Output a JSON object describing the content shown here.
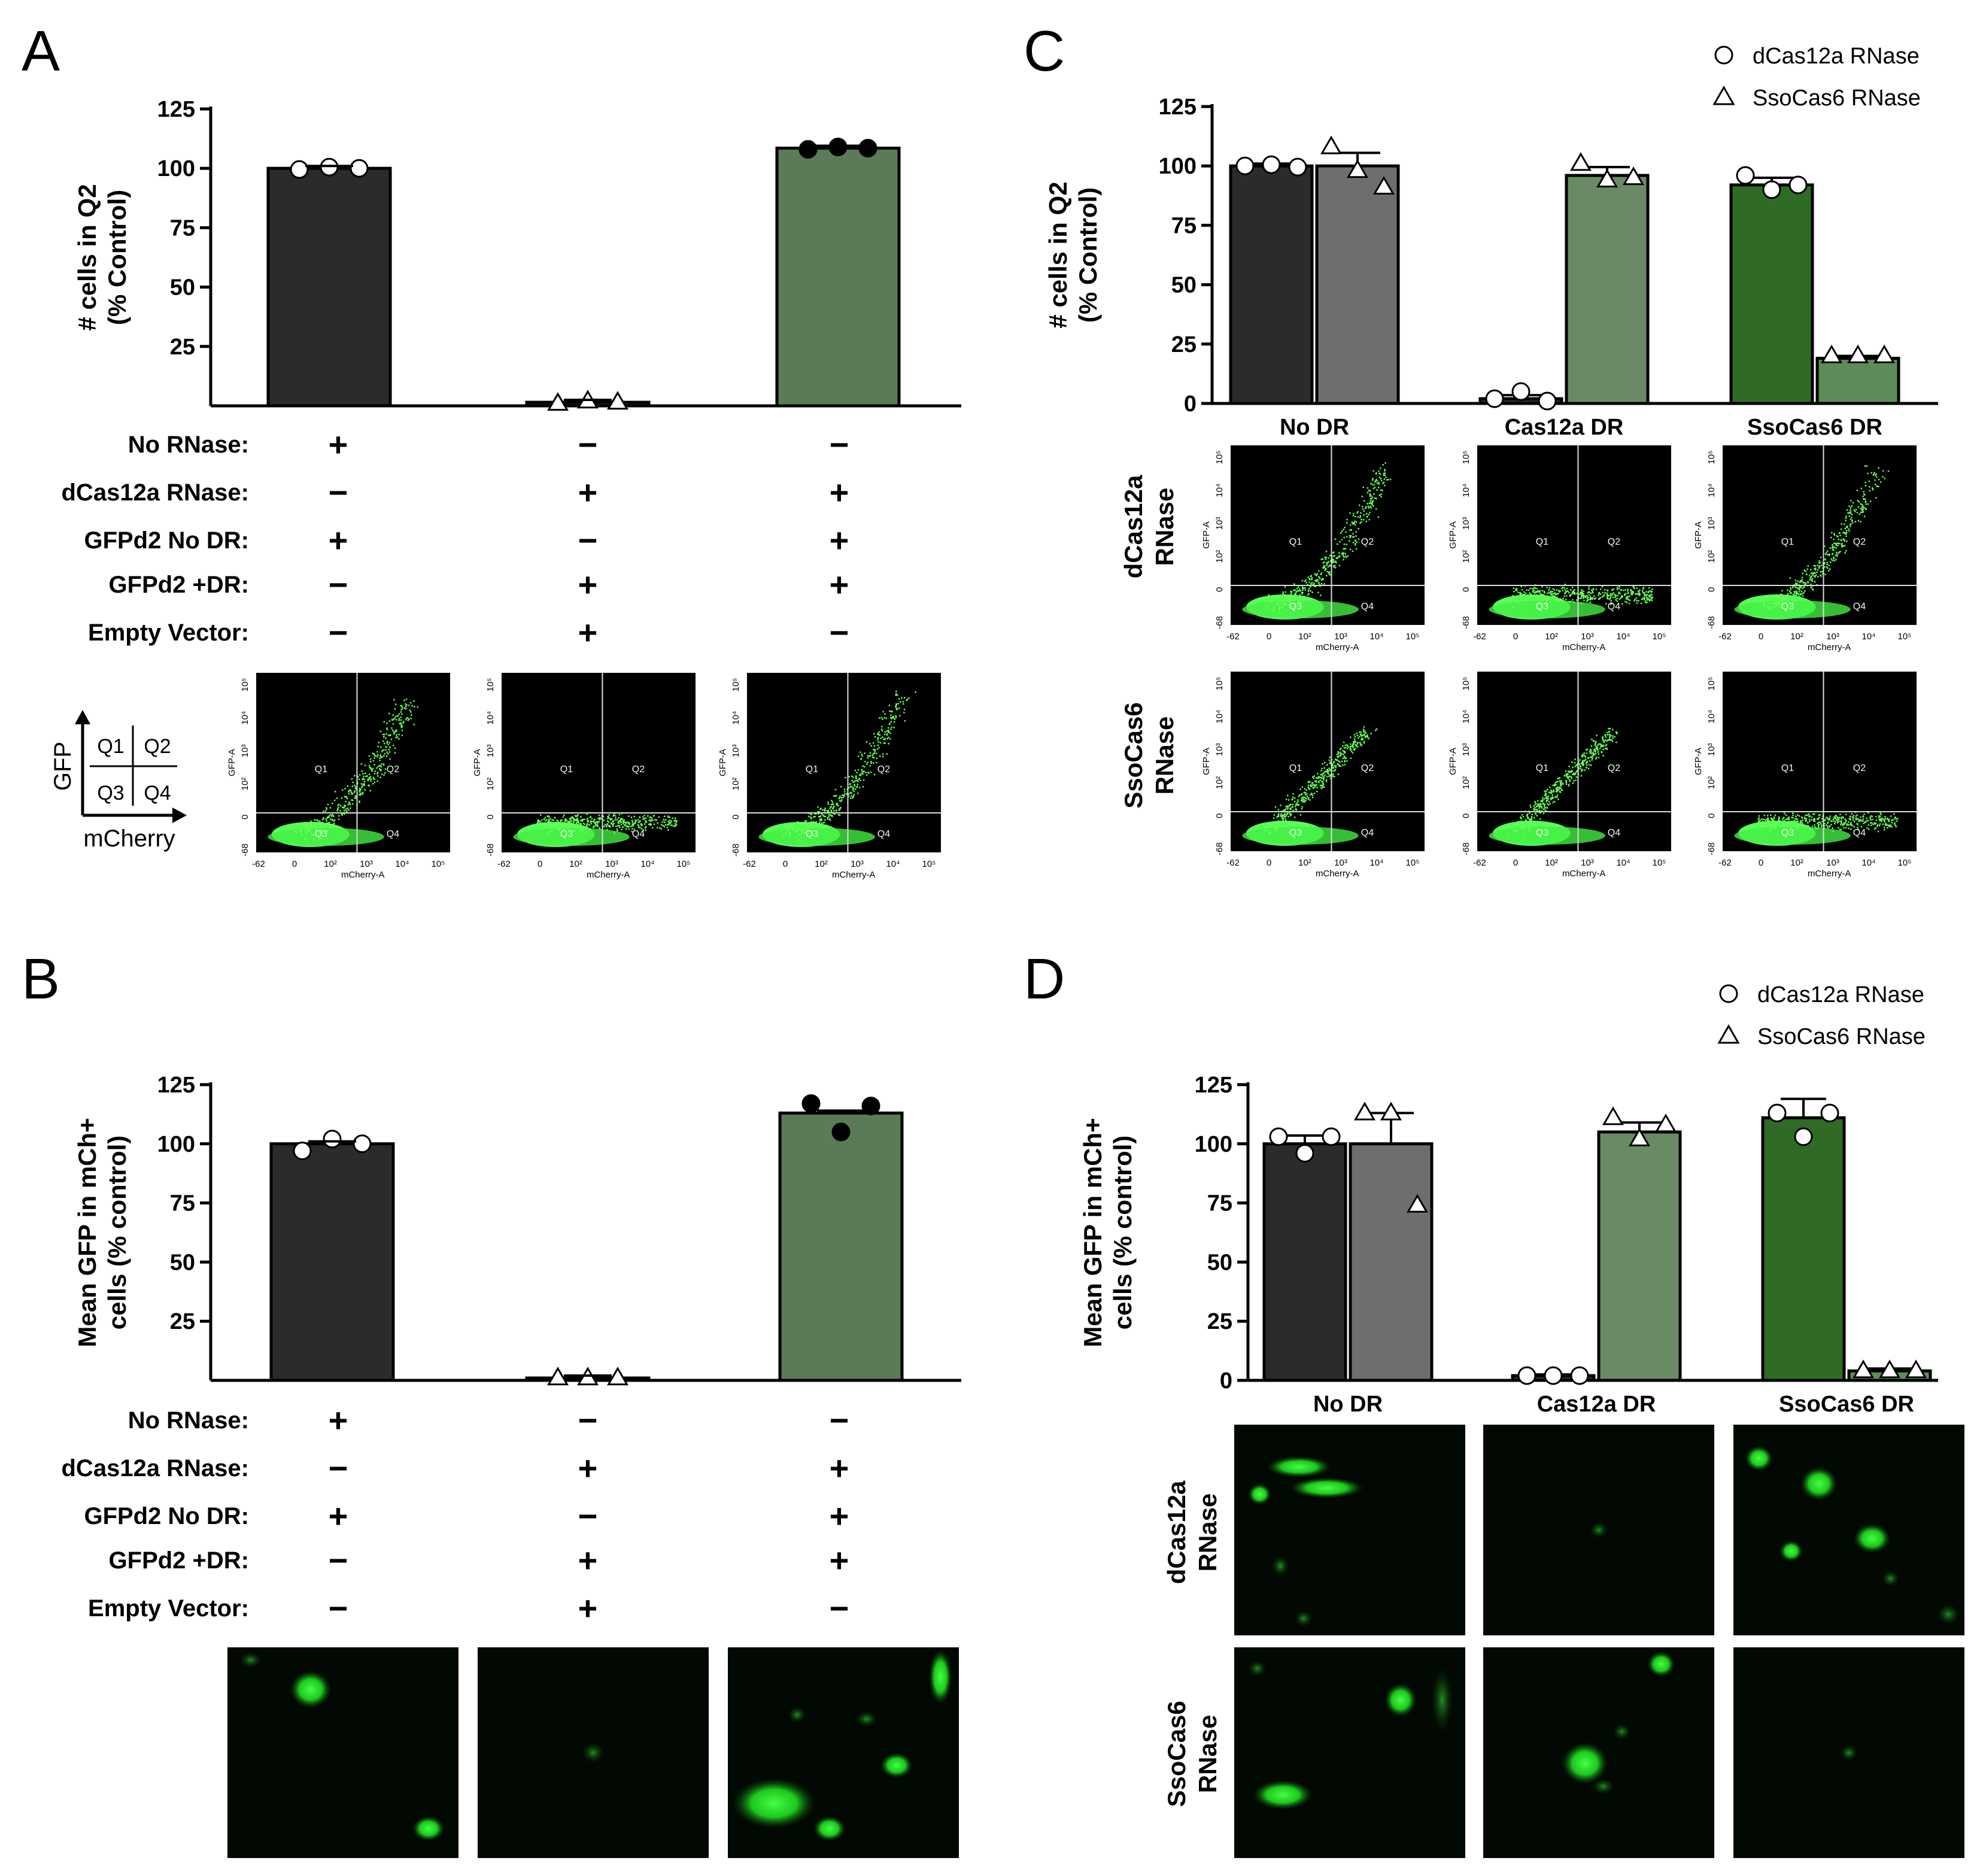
{
  "colors": {
    "no_rnase": "#2b2b2b",
    "no_rnase_sso": "#6e6e6e",
    "cas12a_bar": "#5b7a57",
    "cas12a_bar_sso": "#6a8a65",
    "sso_bar_dcas": "#2f6b25",
    "sso_bar_sso": "#5e8c58",
    "gfp": "#33ff33"
  },
  "panel_letters": [
    "A",
    "B",
    "C",
    "D"
  ],
  "legend": {
    "dcas12a": "dCas12a RNase",
    "ssocas6": "SsoCas6 RNase",
    "dcas12a_icon": "circle-open-icon",
    "ssocas6_icon": "triangle-open-icon"
  },
  "conditions": {
    "labels": [
      "No RNase:",
      "dCas12a RNase:",
      "GFPd2 No DR:",
      "GFPd2 +DR:",
      "Empty Vector:"
    ],
    "matrix": [
      [
        "+",
        "−",
        "−"
      ],
      [
        "−",
        "+",
        "+"
      ],
      [
        "+",
        "−",
        "+"
      ],
      [
        "−",
        "+",
        "+"
      ],
      [
        "−",
        "+",
        "−"
      ]
    ]
  },
  "quadrant_key": {
    "y_axis": "GFP",
    "x_axis": "mCherry",
    "cells": [
      "Q1",
      "Q2",
      "Q3",
      "Q4"
    ]
  },
  "flow_labels": {
    "x_axis": "mCherry-A",
    "y_axis": "GFP-A",
    "x_ticks": [
      "-62",
      "0",
      "10²",
      "10³",
      "10⁴",
      "10⁵"
    ],
    "y_ticks": [
      "-68",
      "0",
      "10²",
      "10³",
      "10⁴",
      "10⁵"
    ],
    "quadrants": [
      "Q1",
      "Q2",
      "Q3",
      "Q4"
    ]
  },
  "row_labels": {
    "dcas12a": [
      "dCas12a",
      "RNase"
    ],
    "ssocas6": [
      "SsoCas6",
      "RNase"
    ]
  },
  "chart_data": [
    {
      "panel": "A",
      "type": "bar",
      "ylabel_lines": [
        "# cells in Q2",
        "(% Control)"
      ],
      "ylim": [
        0,
        125
      ],
      "yticks": [
        25,
        50,
        75,
        100,
        125
      ],
      "yticks_labels": [
        "25",
        "50",
        "75",
        "100",
        "125"
      ],
      "bars": [
        {
          "value": 100,
          "color_key": "no_rnase",
          "points": [
            99.5,
            100.5,
            100
          ],
          "marker": "circle-open"
        },
        {
          "value": 1.5,
          "color_key": "no_rnase",
          "points": [
            1,
            2,
            1.5
          ],
          "marker": "triangle-open"
        },
        {
          "value": 108.5,
          "color_key": "cas12a_bar",
          "points": [
            108,
            109,
            108.5
          ],
          "marker": "circle-filled"
        }
      ]
    },
    {
      "panel": "B",
      "type": "bar",
      "ylabel_lines": [
        "Mean GFP in mCh+",
        "cells (% control)"
      ],
      "ylim": [
        0,
        125
      ],
      "yticks": [
        25,
        50,
        75,
        100,
        125
      ],
      "yticks_labels": [
        "25",
        "50",
        "75",
        "100",
        "125"
      ],
      "bars": [
        {
          "value": 100,
          "color_key": "no_rnase",
          "points": [
            97,
            102,
            100
          ],
          "marker": "circle-open"
        },
        {
          "value": 1,
          "color_key": "no_rnase",
          "points": [
            1,
            1,
            1
          ],
          "marker": "triangle-open"
        },
        {
          "value": 113,
          "color_key": "cas12a_bar",
          "points": [
            117,
            105,
            116
          ],
          "marker": "circle-filled"
        }
      ]
    },
    {
      "panel": "C",
      "type": "bar",
      "ylabel_lines": [
        "# cells in Q2",
        "(% Control)"
      ],
      "ylim": [
        0,
        125
      ],
      "yticks": [
        0,
        25,
        50,
        75,
        100,
        125
      ],
      "yticks_labels": [
        "0",
        "25",
        "50",
        "75",
        "100",
        "125"
      ],
      "categories": [
        "No DR",
        "Cas12a DR",
        "SsoCas6 DR"
      ],
      "series": [
        {
          "name": "dCas12a RNase",
          "marker": "circle",
          "values": [
            100,
            2,
            92
          ],
          "points": [
            [
              100,
              100.5,
              99.5
            ],
            [
              2,
              5,
              1
            ],
            [
              96,
              90,
              92
            ]
          ],
          "errors": [
            1,
            1.5,
            3
          ],
          "color_keys": [
            "no_rnase",
            "no_rnase",
            "sso_bar_dcas"
          ]
        },
        {
          "name": "SsoCas6 RNase",
          "marker": "triangle",
          "values": [
            100,
            96,
            19
          ],
          "points": [
            [
              108,
              98,
              91
            ],
            [
              101,
              94,
              95
            ],
            [
              20,
              20,
              20
            ]
          ],
          "errors": [
            5.5,
            3.5,
            1
          ],
          "color_keys": [
            "no_rnase_sso",
            "cas12a_bar_sso",
            "sso_bar_sso"
          ]
        }
      ]
    },
    {
      "panel": "D",
      "type": "bar",
      "ylabel_lines": [
        "Mean GFP in mCh+",
        "cells (% control)"
      ],
      "ylim": [
        0,
        125
      ],
      "yticks": [
        0,
        25,
        50,
        75,
        100,
        125
      ],
      "yticks_labels": [
        "0",
        "25",
        "50",
        "75",
        "100",
        "125"
      ],
      "categories": [
        "No DR",
        "Cas12a DR",
        "SsoCas6 DR"
      ],
      "series": [
        {
          "name": "dCas12a RNase",
          "marker": "circle",
          "values": [
            100,
            2,
            111
          ],
          "points": [
            [
              103,
              96,
              103
            ],
            [
              2,
              2,
              2
            ],
            [
              113,
              103,
              113
            ]
          ],
          "errors": [
            3.5,
            0.5,
            8
          ],
          "color_keys": [
            "no_rnase",
            "no_rnase",
            "sso_bar_dcas"
          ]
        },
        {
          "name": "SsoCas6 RNase",
          "marker": "triangle",
          "values": [
            100,
            105,
            4
          ],
          "points": [
            [
              113,
              113,
              74
            ],
            [
              111,
              102,
              108
            ],
            [
              4,
              4,
              4
            ]
          ],
          "errors": [
            13,
            4,
            1
          ],
          "color_keys": [
            "no_rnase_sso",
            "cas12a_bar_sso",
            "sso_bar_sso"
          ]
        }
      ]
    }
  ]
}
